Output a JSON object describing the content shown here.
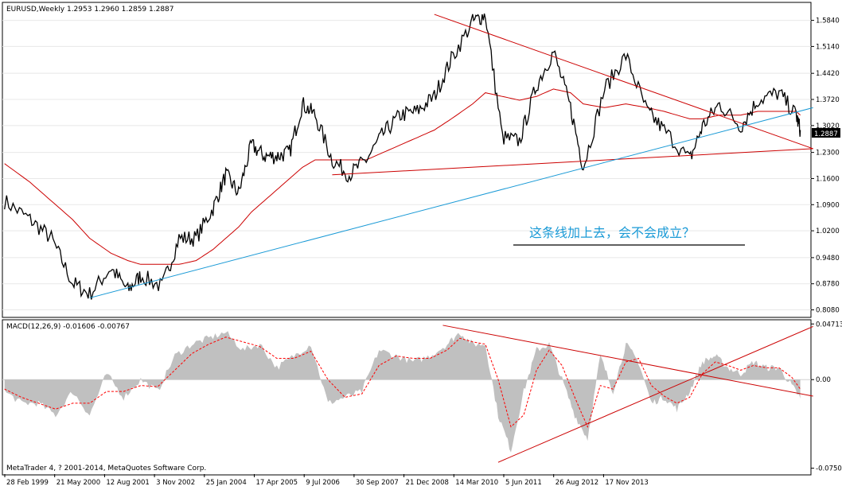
{
  "main_panel": {
    "header": "EURUSD,Weekly  1.2953 1.2960 1.2859 1.2887",
    "annotation": "这条线加上去，会不会成立？",
    "price_label": "1.2887",
    "y_ticks": [
      "1.5840",
      "1.5140",
      "1.4420",
      "1.3720",
      "1.3020",
      "1.2300",
      "1.1600",
      "1.0900",
      "1.0200",
      "0.9480",
      "0.8780",
      "0.8080"
    ]
  },
  "macd_panel": {
    "header": "MACD(12,26,9) -0.01606 -0.00767",
    "y_ticks": [
      "0.04713",
      "0.00",
      "-0.07501"
    ]
  },
  "copyright": "MetaTrader 4, ? 2001-2014, MetaQuotes Software Corp.",
  "x_ticks": [
    "28 Feb 1999",
    "21 May 2000",
    "12 Aug 2001",
    "3 Nov 2002",
    "25 Jan 2004",
    "17 Apr 2005",
    "9 Jul 2006",
    "30 Sep 2007",
    "21 Dec 2008",
    "14 Mar 2010",
    "5 Jun 2011",
    "26 Aug 2012",
    "17 Nov 2013"
  ],
  "colors": {
    "price": "#000000",
    "moving_average": "#cc0000",
    "trendline": "#cc0000",
    "support_line": "#1a9ad6",
    "annotation": "#1a9ad6",
    "histogram": "#c0c0c0",
    "signal": "#ff0000"
  },
  "chart_data": [
    {
      "type": "line",
      "symbol": "EURUSD",
      "timeframe": "Weekly",
      "ohlc_last": {
        "open": 1.2953,
        "high": 1.296,
        "low": 1.2859,
        "close": 1.2887
      },
      "x": [
        "1999-02",
        "1999-08",
        "2000-01",
        "2000-06",
        "2000-10",
        "2001-03",
        "2001-07",
        "2001-10",
        "2002-03",
        "2002-07",
        "2002-11",
        "2003-03",
        "2003-06",
        "2003-09",
        "2003-12",
        "2004-03",
        "2004-06",
        "2004-09",
        "2004-12",
        "2005-03",
        "2005-07",
        "2005-11",
        "2006-03",
        "2006-07",
        "2006-11",
        "2007-03",
        "2007-07",
        "2007-11",
        "2008-04",
        "2008-07",
        "2008-11",
        "2009-03",
        "2009-07",
        "2009-11",
        "2010-03",
        "2010-06",
        "2010-11",
        "2011-04",
        "2011-09",
        "2012-01",
        "2012-07",
        "2012-10",
        "2013-02",
        "2013-07",
        "2013-11",
        "2014-04",
        "2014-08",
        "2014-09"
      ],
      "series": [
        {
          "values": [
            1.1,
            1.05,
            1.0,
            0.88,
            0.85,
            0.92,
            0.86,
            0.9,
            0.87,
            1.0,
            1.0,
            1.08,
            1.17,
            1.12,
            1.25,
            1.22,
            1.22,
            1.23,
            1.36,
            1.33,
            1.21,
            1.17,
            1.21,
            1.28,
            1.33,
            1.34,
            1.38,
            1.48,
            1.58,
            1.6,
            1.27,
            1.26,
            1.41,
            1.5,
            1.35,
            1.19,
            1.4,
            1.49,
            1.34,
            1.29,
            1.21,
            1.3,
            1.36,
            1.3,
            1.37,
            1.39,
            1.33,
            1.29
          ]
        },
        {
          "values": [
            1.2,
            1.15,
            1.1,
            1.05,
            1.0,
            0.96,
            0.94,
            0.93,
            0.93,
            0.93,
            0.94,
            0.97,
            1.0,
            1.03,
            1.07,
            1.1,
            1.13,
            1.16,
            1.19,
            1.21,
            1.21,
            1.21,
            1.21,
            1.23,
            1.25,
            1.27,
            1.29,
            1.32,
            1.36,
            1.39,
            1.38,
            1.37,
            1.38,
            1.4,
            1.39,
            1.36,
            1.35,
            1.36,
            1.35,
            1.34,
            1.32,
            1.32,
            1.33,
            1.33,
            1.34,
            1.34,
            1.34,
            1.33
          ]
        }
      ],
      "trendlines": [
        {
          "x": [
            "2007-07",
            "2014-12"
          ],
          "y": [
            1.6,
            1.24
          ]
        },
        {
          "x": [
            "2005-07",
            "2014-12"
          ],
          "y": [
            1.17,
            1.24
          ]
        },
        {
          "x": [
            "2000-10",
            "2014-12"
          ],
          "y": [
            0.84,
            1.35
          ]
        }
      ],
      "ylim": [
        0.79,
        1.63
      ]
    },
    {
      "type": "bar",
      "indicator": "MACD(12,26,9)",
      "main_last": -0.01606,
      "signal_last": -0.00767,
      "x": [
        "1999-02",
        "1999-06",
        "1999-10",
        "2000-02",
        "2000-06",
        "2000-10",
        "2001-02",
        "2001-06",
        "2001-10",
        "2002-02",
        "2002-06",
        "2002-10",
        "2003-02",
        "2003-06",
        "2003-10",
        "2004-02",
        "2004-06",
        "2004-10",
        "2005-02",
        "2005-06",
        "2005-10",
        "2006-02",
        "2006-06",
        "2006-10",
        "2007-02",
        "2007-06",
        "2007-10",
        "2008-01",
        "2008-04",
        "2008-07",
        "2008-10",
        "2009-01",
        "2009-04",
        "2009-07",
        "2009-10",
        "2010-01",
        "2010-04",
        "2010-07",
        "2010-10",
        "2011-01",
        "2011-04",
        "2011-07",
        "2011-10",
        "2012-01",
        "2012-04",
        "2012-07",
        "2012-10",
        "2013-01",
        "2013-04",
        "2013-07",
        "2013-10",
        "2014-01",
        "2014-04",
        "2014-07",
        "2014-09"
      ],
      "series": [
        {
          "values": [
            -0.01,
            -0.02,
            -0.02,
            -0.03,
            -0.01,
            -0.03,
            0.005,
            -0.015,
            0.0,
            -0.01,
            0.02,
            0.03,
            0.035,
            0.04,
            0.025,
            0.03,
            0.01,
            0.02,
            0.03,
            -0.02,
            -0.015,
            -0.01,
            0.025,
            0.02,
            0.015,
            0.02,
            0.03,
            0.04,
            0.03,
            0.03,
            -0.03,
            -0.06,
            -0.01,
            0.025,
            0.03,
            0.0,
            -0.03,
            -0.05,
            0.02,
            -0.01,
            0.03,
            0.015,
            -0.02,
            -0.015,
            -0.025,
            -0.01,
            0.015,
            0.02,
            0.01,
            0.005,
            0.015,
            0.01,
            0.01,
            -0.005,
            -0.016
          ]
        },
        {
          "values": [
            -0.008,
            -0.015,
            -0.02,
            -0.025,
            -0.02,
            -0.02,
            -0.01,
            -0.01,
            -0.005,
            -0.006,
            0.008,
            0.022,
            0.03,
            0.036,
            0.032,
            0.028,
            0.018,
            0.018,
            0.024,
            0.0,
            -0.015,
            -0.012,
            0.012,
            0.02,
            0.018,
            0.018,
            0.025,
            0.035,
            0.032,
            0.03,
            0.0,
            -0.04,
            -0.03,
            0.008,
            0.025,
            0.012,
            -0.015,
            -0.04,
            -0.005,
            -0.008,
            0.015,
            0.018,
            -0.005,
            -0.014,
            -0.02,
            -0.015,
            0.005,
            0.015,
            0.012,
            0.008,
            0.012,
            0.01,
            0.01,
            0.002,
            -0.008
          ]
        }
      ],
      "trendlines": [
        {
          "x": [
            "2007-09",
            "2014-12"
          ],
          "y": [
            0.046,
            -0.014
          ]
        },
        {
          "x": [
            "2008-10",
            "2014-12"
          ],
          "y": [
            -0.07,
            0.045
          ]
        }
      ],
      "ylim": [
        -0.08,
        0.05
      ]
    }
  ]
}
